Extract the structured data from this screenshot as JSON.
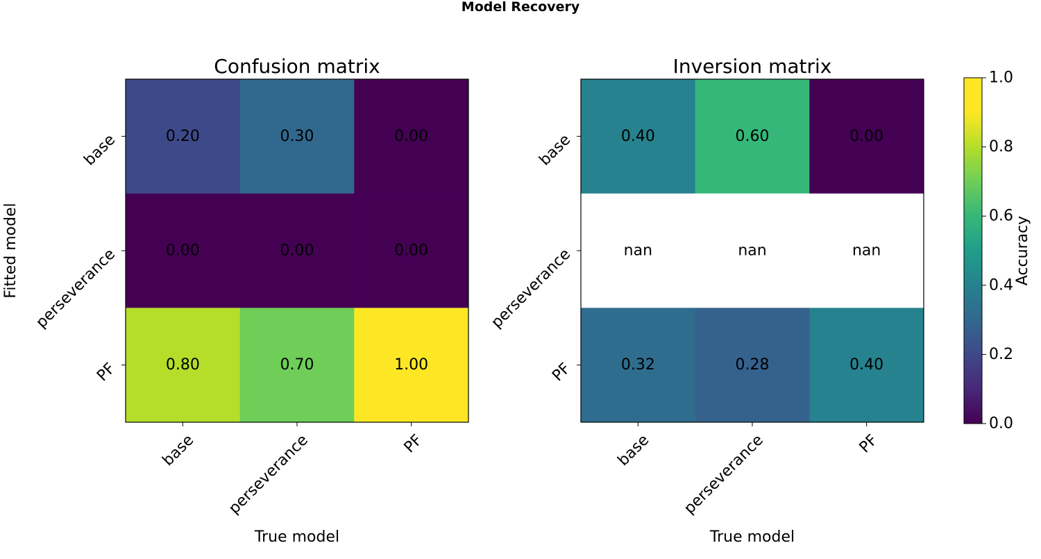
{
  "suptitle": "Model Recovery",
  "chart_data": [
    {
      "type": "heatmap",
      "title": "Confusion matrix",
      "xlabel": "True model",
      "ylabel": "Fitted model",
      "x_categories": [
        "base",
        "perseverance",
        "PF"
      ],
      "y_categories": [
        "base",
        "perseverance",
        "PF"
      ],
      "values": [
        [
          0.2,
          0.3,
          0.0
        ],
        [
          0.0,
          0.0,
          0.0
        ],
        [
          0.8,
          0.7,
          1.0
        ]
      ],
      "labels": [
        [
          "0.20",
          "0.30",
          "0.00"
        ],
        [
          "0.00",
          "0.00",
          "0.00"
        ],
        [
          "0.80",
          "0.70",
          "1.00"
        ]
      ],
      "colormap": "viridis",
      "zlim": [
        0,
        1
      ]
    },
    {
      "type": "heatmap",
      "title": "Inversion matrix",
      "xlabel": "True model",
      "ylabel": "",
      "x_categories": [
        "base",
        "perseverance",
        "PF"
      ],
      "y_categories": [
        "base",
        "perseverance",
        "PF"
      ],
      "values": [
        [
          0.4,
          0.6,
          0.0
        ],
        [
          null,
          null,
          null
        ],
        [
          0.32,
          0.28,
          0.4
        ]
      ],
      "labels": [
        [
          "0.40",
          "0.60",
          "0.00"
        ],
        [
          "nan",
          "nan",
          "nan"
        ],
        [
          "0.32",
          "0.28",
          "0.40"
        ]
      ],
      "colormap": "viridis",
      "zlim": [
        0,
        1
      ]
    }
  ],
  "colorbar": {
    "label": "Accuracy",
    "range": [
      0,
      1
    ],
    "ticks": [
      "0.0",
      "0.2",
      "0.4",
      "0.6",
      "0.8",
      "1.0"
    ],
    "colormap": "viridis"
  }
}
